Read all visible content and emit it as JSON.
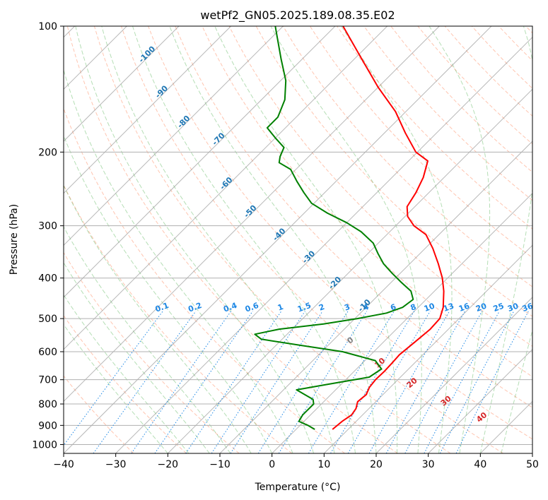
{
  "chart_data": {
    "type": "skew-t log-p",
    "title": "wetPf2_GN05.2025.189.08.35.E02",
    "xlabel": "Temperature (°C)",
    "ylabel": "Pressure (hPa)",
    "xlim": [
      -40,
      50
    ],
    "ylim": [
      1050,
      100
    ],
    "y_scale": "log",
    "grid": true,
    "x_ticks": [
      "−40",
      "−30",
      "−20",
      "−10",
      "0",
      "10",
      "20",
      "30",
      "40",
      "50"
    ],
    "x_tick_values": [
      -40,
      -30,
      -20,
      -10,
      0,
      10,
      20,
      30,
      40,
      50
    ],
    "y_ticks": [
      "100",
      "200",
      "300",
      "400",
      "500",
      "600",
      "700",
      "800",
      "900",
      "1000"
    ],
    "y_tick_values": [
      100,
      200,
      300,
      400,
      500,
      600,
      700,
      800,
      900,
      1000
    ],
    "isotherm_labels": [
      "-100",
      "-90",
      "-80",
      "-70",
      "-60",
      "-50",
      "-40",
      "-30",
      "-20",
      "-10"
    ],
    "isotherm_label_pressures": [
      118,
      145,
      171,
      188,
      240,
      280,
      318,
      360,
      415,
      470
    ],
    "mixing_ratio_labels": [
      "0.1",
      "0.2",
      "0.4",
      "0.6",
      "1",
      "1.5",
      "2",
      "3",
      "4",
      "6",
      "8",
      "10",
      "13",
      "16",
      "20",
      "25",
      "30",
      "36"
    ],
    "mixing_ratio_values": [
      0.1,
      0.2,
      0.4,
      0.6,
      1,
      1.5,
      2,
      3,
      4,
      6,
      8,
      10,
      13,
      16,
      20,
      25,
      30,
      36
    ],
    "wet_bulb_labels": [
      "0",
      "10",
      "20",
      "30",
      "40"
    ],
    "wet_bulb_values": [
      0,
      10,
      20,
      30,
      40
    ],
    "series": [
      {
        "name": "",
        "kind": "temperature",
        "color": "#ff0000",
        "points": [
          {
            "p": 920,
            "t": 7.0
          },
          {
            "p": 880,
            "t": 7.3
          },
          {
            "p": 850,
            "t": 7.9
          },
          {
            "p": 820,
            "t": 7.5
          },
          {
            "p": 790,
            "t": 6.5
          },
          {
            "p": 760,
            "t": 6.8
          },
          {
            "p": 730,
            "t": 6.0
          },
          {
            "p": 700,
            "t": 5.7
          },
          {
            "p": 670,
            "t": 5.8
          },
          {
            "p": 640,
            "t": 5.7
          },
          {
            "p": 610,
            "t": 5.5
          },
          {
            "p": 570,
            "t": 6.0
          },
          {
            "p": 530,
            "t": 6.5
          },
          {
            "p": 500,
            "t": 6.3
          },
          {
            "p": 470,
            "t": 4.8
          },
          {
            "p": 430,
            "t": 1.8
          },
          {
            "p": 400,
            "t": -1.0
          },
          {
            "p": 370,
            "t": -4.5
          },
          {
            "p": 340,
            "t": -8.5
          },
          {
            "p": 315,
            "t": -12.5
          },
          {
            "p": 300,
            "t": -16.5
          },
          {
            "p": 285,
            "t": -19.5
          },
          {
            "p": 270,
            "t": -21.5
          },
          {
            "p": 250,
            "t": -22.5
          },
          {
            "p": 230,
            "t": -24.0
          },
          {
            "p": 210,
            "t": -26.3
          },
          {
            "p": 200,
            "t": -30.3
          },
          {
            "p": 180,
            "t": -36.0
          },
          {
            "p": 160,
            "t": -42.0
          },
          {
            "p": 140,
            "t": -50.0
          },
          {
            "p": 120,
            "t": -58.5
          },
          {
            "p": 100,
            "t": -68.5
          }
        ]
      },
      {
        "name": "",
        "kind": "dewpoint",
        "color": "#008000",
        "points": [
          {
            "p": 920,
            "t": 3.6
          },
          {
            "p": 900,
            "t": 1.5
          },
          {
            "p": 880,
            "t": -1.0
          },
          {
            "p": 850,
            "t": -1.5
          },
          {
            "p": 800,
            "t": -1.5
          },
          {
            "p": 780,
            "t": -2.5
          },
          {
            "p": 760,
            "t": -5.0
          },
          {
            "p": 740,
            "t": -7.5
          },
          {
            "p": 720,
            "t": -3.0
          },
          {
            "p": 690,
            "t": 4.0
          },
          {
            "p": 660,
            "t": 4.8
          },
          {
            "p": 630,
            "t": 2.0
          },
          {
            "p": 600,
            "t": -6.0
          },
          {
            "p": 580,
            "t": -15.0
          },
          {
            "p": 560,
            "t": -24.0
          },
          {
            "p": 545,
            "t": -26.2
          },
          {
            "p": 530,
            "t": -22.5
          },
          {
            "p": 515,
            "t": -15.0
          },
          {
            "p": 500,
            "t": -9.5
          },
          {
            "p": 485,
            "t": -5.0
          },
          {
            "p": 470,
            "t": -3.0
          },
          {
            "p": 450,
            "t": -2.5
          },
          {
            "p": 430,
            "t": -4.5
          },
          {
            "p": 410,
            "t": -8.0
          },
          {
            "p": 390,
            "t": -11.5
          },
          {
            "p": 370,
            "t": -15.0
          },
          {
            "p": 350,
            "t": -18.0
          },
          {
            "p": 330,
            "t": -21.0
          },
          {
            "p": 310,
            "t": -25.5
          },
          {
            "p": 295,
            "t": -30.0
          },
          {
            "p": 280,
            "t": -35.5
          },
          {
            "p": 265,
            "t": -40.5
          },
          {
            "p": 250,
            "t": -44.0
          },
          {
            "p": 235,
            "t": -47.5
          },
          {
            "p": 220,
            "t": -51.0
          },
          {
            "p": 212,
            "t": -54.5
          },
          {
            "p": 205,
            "t": -55.5
          },
          {
            "p": 195,
            "t": -56.5
          },
          {
            "p": 185,
            "t": -60.0
          },
          {
            "p": 175,
            "t": -63.5
          },
          {
            "p": 165,
            "t": -63.5
          },
          {
            "p": 150,
            "t": -65.5
          },
          {
            "p": 135,
            "t": -69.0
          },
          {
            "p": 120,
            "t": -74.0
          },
          {
            "p": 105,
            "t": -79.5
          },
          {
            "p": 100,
            "t": -81.5
          }
        ]
      }
    ]
  },
  "colors": {
    "temperature": "#ff0000",
    "dewpoint": "#008000",
    "isotherm_label": "#1f77b4",
    "mixing_ratio": "#1e88e5",
    "wet_bulb_label": "#d62728",
    "dry_adiabat": "#ff7f50",
    "moist_adiabat": "#2ca02c",
    "grid": "#b0b0b0"
  }
}
